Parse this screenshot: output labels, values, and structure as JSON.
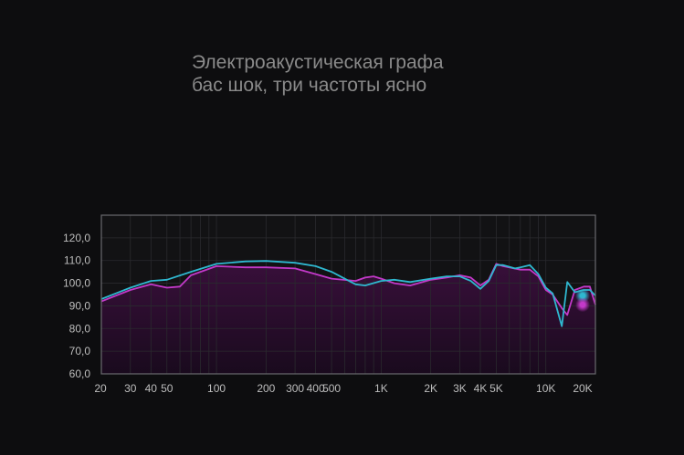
{
  "title_line1": "Электроакустическая графа",
  "title_line2": "бас шок, три частоты ясно",
  "chart_data": {
    "type": "line",
    "x_scale": "log",
    "xlim": [
      20,
      20000
    ],
    "ylim": [
      60,
      130
    ],
    "grid": true,
    "y_ticks": [
      {
        "value": 60,
        "label": "60,0"
      },
      {
        "value": 70,
        "label": "70,0"
      },
      {
        "value": 80,
        "label": "80,0"
      },
      {
        "value": 90,
        "label": "90,0"
      },
      {
        "value": 100,
        "label": "100,0"
      },
      {
        "value": 110,
        "label": "110,0"
      },
      {
        "value": 120,
        "label": "120,0"
      }
    ],
    "x_ticks": [
      {
        "value": 20,
        "label": "20"
      },
      {
        "value": 30,
        "label": "30"
      },
      {
        "value": 40,
        "label": "40"
      },
      {
        "value": 50,
        "label": "50"
      },
      {
        "value": 100,
        "label": "100"
      },
      {
        "value": 200,
        "label": "200"
      },
      {
        "value": 300,
        "label": "300"
      },
      {
        "value": 400,
        "label": "400"
      },
      {
        "value": 500,
        "label": "500"
      },
      {
        "value": 1000,
        "label": "1K"
      },
      {
        "value": 2000,
        "label": "2K"
      },
      {
        "value": 3000,
        "label": "3K"
      },
      {
        "value": 4000,
        "label": "4K"
      },
      {
        "value": 5000,
        "label": "5K"
      },
      {
        "value": 10000,
        "label": "10K"
      },
      {
        "value": 20000,
        "label": "20K"
      }
    ],
    "series": [
      {
        "color": "#2fb8d0",
        "points": [
          [
            20,
            93
          ],
          [
            30,
            98
          ],
          [
            40,
            101
          ],
          [
            50,
            101.5
          ],
          [
            70,
            105
          ],
          [
            100,
            108.5
          ],
          [
            150,
            109.6
          ],
          [
            200,
            109.8
          ],
          [
            300,
            109
          ],
          [
            400,
            107.5
          ],
          [
            500,
            105
          ],
          [
            600,
            102
          ],
          [
            700,
            99.5
          ],
          [
            800,
            99
          ],
          [
            1000,
            101
          ],
          [
            1200,
            101.5
          ],
          [
            1500,
            100.5
          ],
          [
            2000,
            102
          ],
          [
            2500,
            103
          ],
          [
            3000,
            103
          ],
          [
            3500,
            101
          ],
          [
            4000,
            97.5
          ],
          [
            4500,
            101
          ],
          [
            5000,
            108
          ],
          [
            5500,
            108
          ],
          [
            6500,
            106.5
          ],
          [
            7000,
            107
          ],
          [
            8000,
            108
          ],
          [
            9000,
            104
          ],
          [
            10000,
            98
          ],
          [
            11000,
            95.5
          ],
          [
            12500,
            81
          ],
          [
            13500,
            100.5
          ],
          [
            15000,
            96
          ],
          [
            17000,
            97
          ],
          [
            18500,
            97
          ],
          [
            20000,
            94.5
          ]
        ]
      },
      {
        "color": "#c339c9",
        "points": [
          [
            20,
            92
          ],
          [
            30,
            97
          ],
          [
            40,
            99.5
          ],
          [
            50,
            98
          ],
          [
            60,
            98.5
          ],
          [
            70,
            103.5
          ],
          [
            100,
            107.5
          ],
          [
            150,
            107
          ],
          [
            200,
            107
          ],
          [
            300,
            106.5
          ],
          [
            400,
            104
          ],
          [
            500,
            102
          ],
          [
            700,
            101
          ],
          [
            800,
            102.5
          ],
          [
            900,
            103
          ],
          [
            1000,
            102
          ],
          [
            1200,
            100
          ],
          [
            1500,
            99
          ],
          [
            2000,
            101.5
          ],
          [
            2500,
            102.5
          ],
          [
            3000,
            103.5
          ],
          [
            3500,
            102.5
          ],
          [
            4000,
            99
          ],
          [
            4500,
            101.5
          ],
          [
            5000,
            108.5
          ],
          [
            5500,
            107.5
          ],
          [
            7000,
            106
          ],
          [
            8000,
            106
          ],
          [
            9000,
            103
          ],
          [
            10000,
            97
          ],
          [
            11000,
            95
          ],
          [
            12500,
            89
          ],
          [
            13500,
            86
          ],
          [
            15000,
            97
          ],
          [
            17000,
            98.5
          ],
          [
            18500,
            98.5
          ],
          [
            20000,
            90.5
          ]
        ]
      }
    ]
  }
}
